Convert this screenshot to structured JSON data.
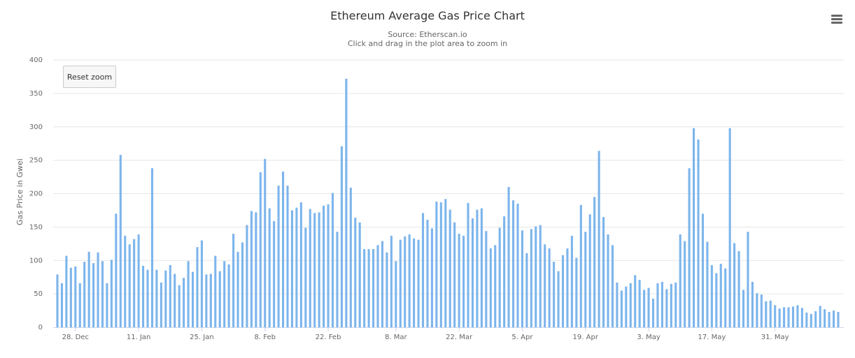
{
  "header": {
    "title": "Ethereum Average Gas Price Chart",
    "subtitle_source": "Source: Etherscan.io",
    "subtitle_hint": "Click and drag in the plot area to zoom in"
  },
  "controls": {
    "reset_zoom_label": "Reset zoom",
    "menu_icon": "hamburger-menu-icon"
  },
  "colors": {
    "bar": "#7cb5ec",
    "grid": "#e6e6e6",
    "axis": "#ccd6eb"
  },
  "chart_data": {
    "type": "bar",
    "title": "Ethereum Average Gas Price Chart",
    "subtitle": "Source: Etherscan.io",
    "xlabel": "",
    "ylabel": "Gas Price in Gwei",
    "ylim": [
      0,
      400
    ],
    "yticks": [
      0,
      50,
      100,
      150,
      200,
      250,
      300,
      350,
      400
    ],
    "x_start_date": "2019-12-24",
    "x_end_date": "2020-06-09",
    "xtick_labels": [
      {
        "date": "2019-12-28",
        "label": "28. Dec"
      },
      {
        "date": "2020-01-11",
        "label": "11. Jan"
      },
      {
        "date": "2020-01-25",
        "label": "25. Jan"
      },
      {
        "date": "2020-02-08",
        "label": "8. Feb"
      },
      {
        "date": "2020-02-22",
        "label": "22. Feb"
      },
      {
        "date": "2020-03-08",
        "label": "8. Mar"
      },
      {
        "date": "2020-03-22",
        "label": "22. Mar"
      },
      {
        "date": "2020-04-05",
        "label": "5. Apr"
      },
      {
        "date": "2020-04-19",
        "label": "19. Apr"
      },
      {
        "date": "2020-05-03",
        "label": "3. May"
      },
      {
        "date": "2020-05-17",
        "label": "17. May"
      },
      {
        "date": "2020-05-31",
        "label": "31. May"
      }
    ],
    "grid": true,
    "legend": false,
    "values": [
      79,
      66,
      107,
      89,
      91,
      66,
      98,
      113,
      96,
      112,
      99,
      66,
      101,
      170,
      258,
      137,
      124,
      132,
      139,
      92,
      86,
      238,
      86,
      67,
      85,
      93,
      80,
      63,
      74,
      99,
      83,
      120,
      130,
      79,
      80,
      107,
      84,
      99,
      94,
      140,
      113,
      127,
      153,
      174,
      172,
      232,
      252,
      178,
      159,
      212,
      233,
      212,
      175,
      179,
      187,
      149,
      177,
      171,
      172,
      182,
      184,
      201,
      143,
      271,
      372,
      209,
      164,
      157,
      117,
      117,
      117,
      123,
      129,
      112,
      137,
      99,
      131,
      136,
      139,
      133,
      131,
      171,
      161,
      148,
      188,
      187,
      192,
      176,
      157,
      140,
      137,
      186,
      163,
      176,
      178,
      144,
      118,
      123,
      149,
      166,
      210,
      190,
      185,
      145,
      111,
      147,
      151,
      153,
      124,
      118,
      98,
      84,
      108,
      118,
      137,
      104,
      183,
      143,
      169,
      195,
      264,
      165,
      139,
      123,
      67,
      55,
      61,
      66,
      78,
      71,
      56,
      59,
      43,
      66,
      68,
      57,
      65,
      67,
      139,
      129,
      238,
      298,
      281,
      170,
      128,
      93,
      81,
      95,
      88,
      298,
      126,
      114,
      56,
      143,
      68,
      51,
      49,
      39,
      40,
      33,
      28,
      30,
      30,
      31,
      33,
      29,
      22,
      20,
      24,
      32,
      27,
      23,
      25,
      23
    ]
  }
}
